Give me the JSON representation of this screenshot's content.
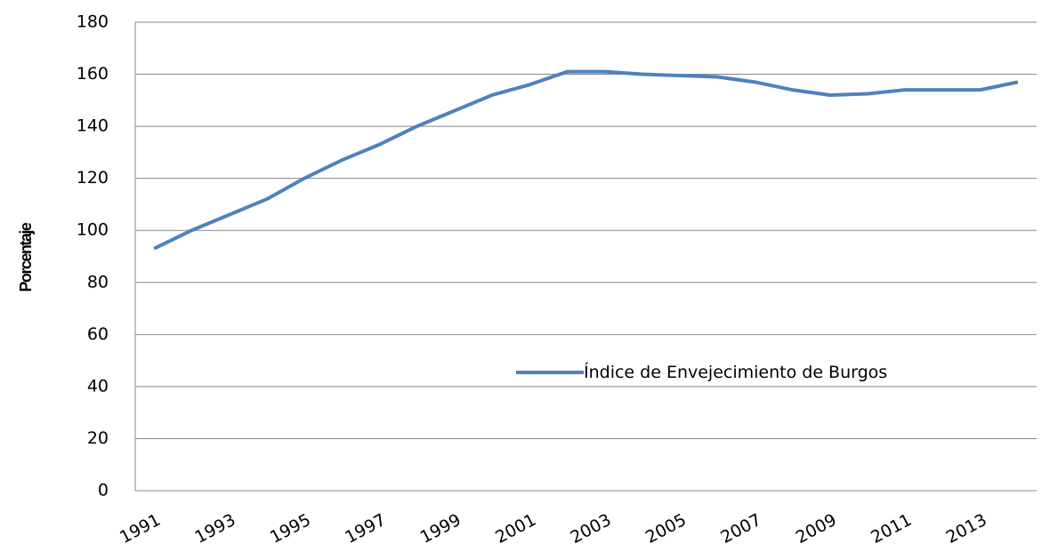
{
  "chart_data": {
    "type": "line",
    "y_label": "Porcentaje",
    "categories": [
      "1991",
      null,
      "1993",
      null,
      "1995",
      null,
      "1997",
      null,
      "1999",
      null,
      "2001",
      null,
      "2003",
      null,
      "2005",
      null,
      "2007",
      null,
      "2009",
      null,
      "2011",
      null,
      "2013",
      null
    ],
    "series": [
      {
        "name": "Índice de Envejecimiento de Burgos",
        "color": "#4f81bd",
        "values": [
          93,
          100,
          106,
          112,
          120,
          127,
          133,
          140,
          146,
          152,
          156,
          161,
          161,
          160,
          159.5,
          159,
          157,
          154,
          152,
          152.5,
          154,
          154,
          154,
          157
        ]
      }
    ],
    "ylim": [
      0,
      180
    ],
    "yticks": [
      0,
      20,
      40,
      60,
      80,
      100,
      120,
      140,
      160,
      180
    ],
    "grid": true,
    "legend": "inside"
  }
}
